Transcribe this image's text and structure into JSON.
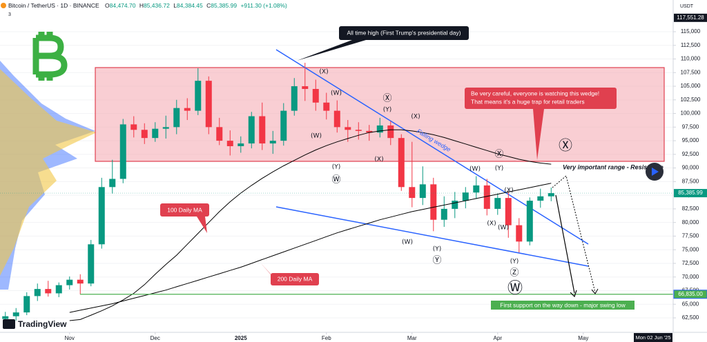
{
  "header": {
    "symbol": "Bitcoin / TetherUS · 1D · BINANCE",
    "ohlc": [
      {
        "key": "O",
        "value": "84,474.70"
      },
      {
        "key": "H",
        "value": "85,436.72"
      },
      {
        "key": "L",
        "value": "84,384.45"
      },
      {
        "key": "C",
        "value": "85,385.99"
      }
    ],
    "change": "+911.30 (+1.08%)",
    "indicator_count": "3",
    "currency": "USDT",
    "date_label": "Mon 02 Jun '25",
    "logo_text": "TradingView"
  },
  "chart_data": {
    "type": "candlestick",
    "up_color": "#089981",
    "down_color": "#f23645",
    "grid": true,
    "open": [
      62300,
      62800,
      63500,
      66500,
      67800,
      67000,
      68500,
      69500,
      68800,
      76000,
      86500,
      88000,
      98000,
      97000,
      95500,
      97200,
      97500,
      101000,
      100500,
      106000,
      97500,
      95000,
      94000,
      94500,
      99500,
      94500,
      95000,
      100500,
      105000,
      104500,
      102000,
      100500,
      97500,
      97000,
      96800,
      96500,
      97800,
      95500,
      86500,
      84500,
      87000,
      80500,
      82500,
      84000,
      85500,
      86800,
      82500,
      84500,
      79500,
      76500,
      84000,
      84800
    ],
    "high": [
      63600,
      64300,
      67200,
      68800,
      69300,
      69000,
      70100,
      70500,
      76800,
      88200,
      91500,
      99000,
      99500,
      98200,
      98400,
      99600,
      102500,
      102800,
      108300,
      106800,
      99200,
      96900,
      95800,
      100300,
      102000,
      96800,
      101900,
      106500,
      109300,
      106200,
      103800,
      102400,
      98800,
      98400,
      97900,
      99200,
      98600,
      96200,
      94800,
      90300,
      88200,
      84800,
      85600,
      86500,
      88500,
      88000,
      85300,
      85700,
      80800,
      84600,
      86200,
      86400
    ],
    "low": [
      61800,
      62000,
      63000,
      65600,
      66400,
      66300,
      67700,
      66800,
      68300,
      75200,
      85300,
      87200,
      95600,
      94400,
      94800,
      95400,
      96200,
      98800,
      99700,
      96200,
      94200,
      92300,
      92800,
      93600,
      93300,
      92600,
      94100,
      99600,
      102300,
      100500,
      98900,
      96500,
      94800,
      95200,
      95000,
      95600,
      94200,
      85800,
      82800,
      83200,
      78400,
      79200,
      80800,
      82600,
      84300,
      81300,
      81400,
      77200,
      74500,
      75800,
      82700,
      83900
    ],
    "close": [
      62800,
      63500,
      66500,
      67800,
      67000,
      68500,
      69500,
      68800,
      76000,
      86500,
      88000,
      98000,
      97000,
      95500,
      97200,
      97500,
      101000,
      100500,
      106000,
      97500,
      95000,
      94000,
      94500,
      99500,
      94500,
      95000,
      100500,
      105000,
      104500,
      102000,
      100500,
      97500,
      97000,
      96800,
      96500,
      97800,
      95500,
      86500,
      84500,
      87000,
      80500,
      82500,
      84000,
      85500,
      86800,
      82500,
      84500,
      79500,
      76500,
      84000,
      84800,
      85386
    ],
    "series": [
      {
        "name": "100 Daily MA",
        "color": "#000000",
        "values": [
          null,
          null,
          null,
          null,
          null,
          null,
          62000,
          62200,
          63000,
          63800,
          64700,
          65800,
          67000,
          68600,
          70500,
          72300,
          74000,
          76000,
          78000,
          80000,
          82000,
          83800,
          85400,
          86800,
          88100,
          89300,
          90400,
          91400,
          92400,
          93300,
          94100,
          94800,
          95400,
          96000,
          96500,
          96800,
          97000,
          97000,
          96800,
          96500,
          96100,
          95600,
          95000,
          94400,
          93800,
          93200,
          92600,
          92100,
          91600,
          91200,
          90900,
          90700
        ]
      },
      {
        "name": "200 Daily MA",
        "color": "#000000",
        "values": [
          null,
          null,
          null,
          null,
          null,
          null,
          63500,
          63900,
          64300,
          64700,
          65100,
          65600,
          66100,
          66600,
          67100,
          67600,
          68200,
          68800,
          69400,
          70000,
          70600,
          71200,
          71800,
          72500,
          73200,
          73900,
          74600,
          75300,
          76000,
          76700,
          77400,
          78100,
          78700,
          79300,
          79900,
          80500,
          81000,
          81500,
          82000,
          82400,
          82800,
          83200,
          83600,
          84000,
          84400,
          84800,
          85200,
          85600,
          86000,
          86400,
          86800,
          87200
        ]
      }
    ],
    "xlim": [
      -0.5,
      62.4
    ],
    "xticks": [
      {
        "value": 6,
        "label": "Nov"
      },
      {
        "value": 14,
        "label": "Dec"
      },
      {
        "value": 22,
        "label": "2025"
      },
      {
        "value": 30,
        "label": "Feb"
      },
      {
        "value": 38,
        "label": "Mar"
      },
      {
        "value": 46,
        "label": "Apr"
      },
      {
        "value": 54,
        "label": "May"
      }
    ],
    "ylim": [
      60350,
      120820
    ],
    "yticks": [
      {
        "value": 62500,
        "label": "62,500"
      },
      {
        "value": 65000,
        "label": "65,000"
      },
      {
        "value": 67500,
        "label": "67,500"
      },
      {
        "value": 70000,
        "label": "70,000"
      },
      {
        "value": 72500,
        "label": "72,500"
      },
      {
        "value": 75000,
        "label": "75,000"
      },
      {
        "value": 77500,
        "label": "77,500"
      },
      {
        "value": 80000,
        "label": "80,000"
      },
      {
        "value": 82500,
        "label": "82,500"
      },
      {
        "value": 85000,
        "label": "85,000"
      },
      {
        "value": 87500,
        "label": "87,500"
      },
      {
        "value": 90000,
        "label": "90,000"
      },
      {
        "value": 92500,
        "label": "92,500"
      },
      {
        "value": 95000,
        "label": "95,000"
      },
      {
        "value": 97500,
        "label": "97,500"
      },
      {
        "value": 100000,
        "label": "100,000"
      },
      {
        "value": 102500,
        "label": "102,500"
      },
      {
        "value": 105000,
        "label": "105,000"
      },
      {
        "value": 107500,
        "label": "107,500"
      },
      {
        "value": 110000,
        "label": "110,000"
      },
      {
        "value": 112500,
        "label": "112,500"
      },
      {
        "value": 115000,
        "label": "115,000"
      }
    ],
    "price_labels": [
      {
        "value": 117551.28,
        "label": "117,551.28"
      },
      {
        "value": 85385.99,
        "label": "85,385.99"
      },
      {
        "value": 66835,
        "label": "66,835.00"
      }
    ],
    "wave_labels": [
      "(X)",
      "(W)",
      "Ⓧ",
      "(Y)",
      "(X)",
      "(W)",
      "(X)",
      "(Y)",
      "Ⓦ",
      "Ⓧ",
      "(W)",
      "(Y)",
      "(X)",
      "Ⓧ",
      "(X)",
      "(W)",
      "(W)",
      "(Y)",
      "Ⓨ",
      "(Y)",
      "Ⓩ",
      "Ⓦ"
    ],
    "callouts": {
      "ath": "All time high (First Trump's presidential day)",
      "warning": [
        "Be very careful, everyone is watching this wedge!",
        "That means it's a huge trap for retail traders"
      ],
      "wedge": "Falling wedge",
      "range": "Very important range - Resistance",
      "support": "First support on the way down - major swing low"
    }
  }
}
